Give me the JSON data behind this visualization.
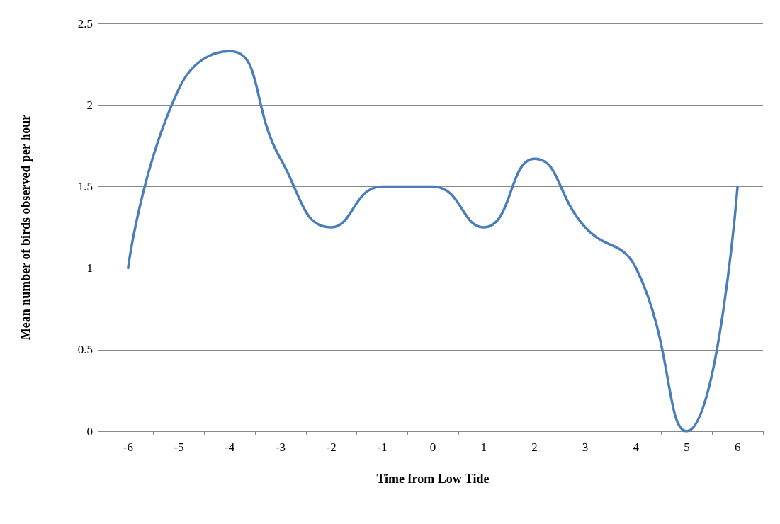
{
  "chart_data": {
    "type": "line",
    "xlabel": "Time from Low Tide",
    "ylabel": "Mean number of birds observed per hour",
    "categories": [
      "-6",
      "-5",
      "-4",
      "-3",
      "-2",
      "-1",
      "0",
      "1",
      "2",
      "3",
      "4",
      "5",
      "6"
    ],
    "series": [
      {
        "color": "#4a7ebb",
        "values": [
          1,
          2.1,
          2.33,
          1.67,
          1.25,
          1.5,
          1.5,
          1.25,
          1.67,
          1.25,
          1,
          0,
          1.5
        ]
      }
    ],
    "ylim": [
      0,
      2.5
    ],
    "yticks": [
      0,
      0.5,
      1,
      1.5,
      2,
      2.5
    ],
    "grid": "y",
    "marker": "none",
    "line_style": "solid"
  }
}
